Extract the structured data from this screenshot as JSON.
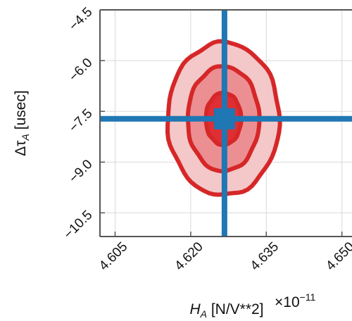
{
  "chart_data": {
    "type": "contour",
    "xlabel_main": "H",
    "xlabel_sub": "A",
    "xlabel_units": " [N/V**2]",
    "ylabel_prefix": "Δτ",
    "ylabel_sub": "A",
    "ylabel_units": " [usec]",
    "x_multiplier": {
      "base": "×10",
      "exponent": "−11"
    },
    "xlim": [
      4.602,
      4.652
    ],
    "ylim": [
      -11.2,
      -4.5
    ],
    "x_ticks": [
      4.605,
      4.62,
      4.635,
      4.65
    ],
    "x_tick_labels": [
      "4.605",
      "4.620",
      "4.635",
      "4.650"
    ],
    "y_ticks": [
      -4.5,
      -6.0,
      -7.5,
      -9.0,
      -10.5
    ],
    "y_tick_labels": [
      "−4.5",
      "−6.0",
      "−7.5",
      "−9.0",
      "−10.5"
    ],
    "grid": true,
    "contour_center": {
      "x": 4.6265,
      "y": -7.72
    },
    "contour_levels": [
      {
        "name": "outer",
        "semi_axis_x": 0.0111,
        "semi_axis_y": 2.26,
        "fill": "#f4c7c8"
      },
      {
        "name": "middle",
        "semi_axis_x": 0.0071,
        "semi_axis_y": 1.55,
        "fill": "#ec8f93"
      },
      {
        "name": "inner",
        "semi_axis_x": 0.0035,
        "semi_axis_y": 0.77,
        "fill": "#df2f34"
      }
    ],
    "truth": {
      "x": 4.6267,
      "y": -7.72
    },
    "colors": {
      "contour_line": "#d62728",
      "truth": "#1f77b4",
      "grid": "#d9d9d9",
      "axes": "#555555"
    }
  }
}
